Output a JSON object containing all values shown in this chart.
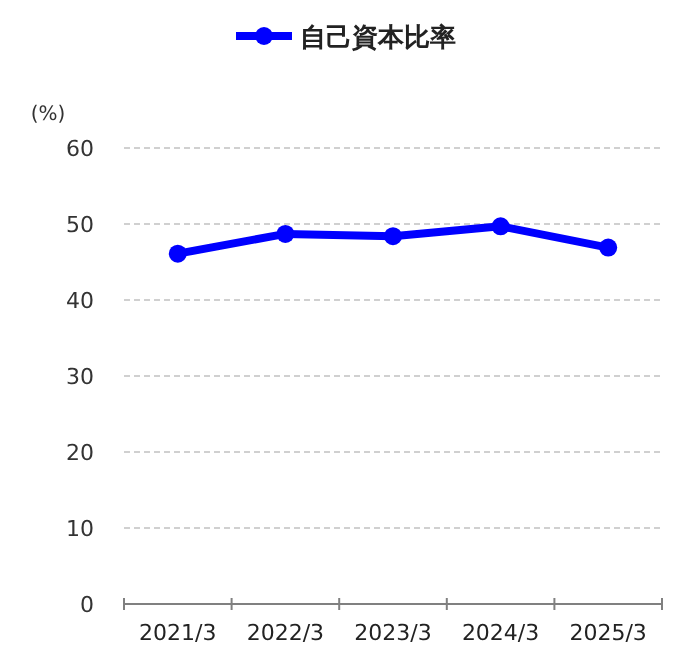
{
  "chart_data": {
    "type": "line",
    "ylabel": "(%)",
    "categories": [
      "2021/3",
      "2022/3",
      "2023/3",
      "2024/3",
      "2025/3"
    ],
    "series": [
      {
        "name": "自己資本比率",
        "color": "#0000ff",
        "values": [
          46.1,
          48.7,
          48.4,
          49.7,
          46.9
        ]
      }
    ],
    "ylim": [
      0,
      60
    ],
    "yticks": [
      0,
      10,
      20,
      30,
      40,
      50,
      60
    ],
    "grid": "y",
    "legend": "top",
    "marker": "circle",
    "line_style": "solid"
  }
}
